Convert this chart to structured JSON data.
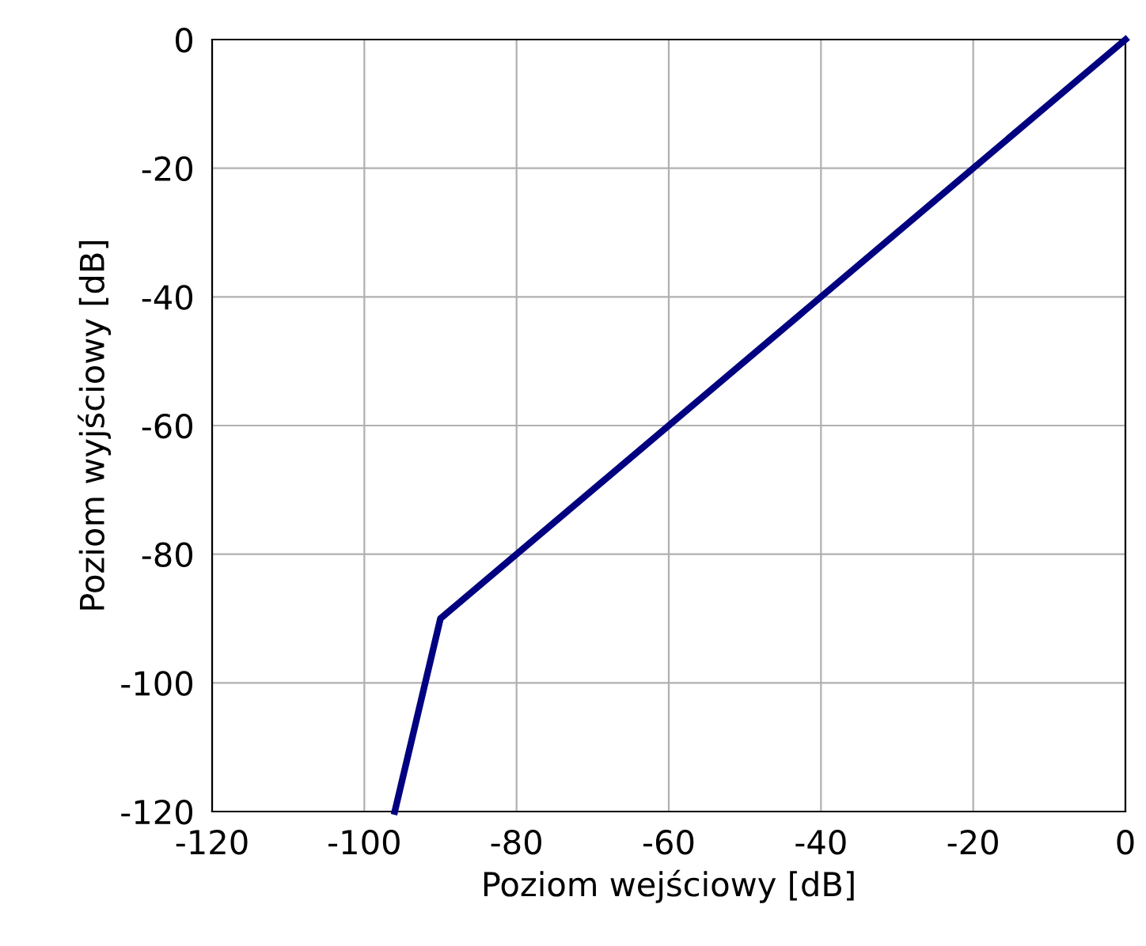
{
  "chart_data": {
    "type": "line",
    "xlabel": "Poziom wejściowy [dB]",
    "ylabel": "Poziom wyjściowy [dB]",
    "x": [
      -96,
      -90,
      0
    ],
    "series": [
      {
        "color": "#000080",
        "values": [
          -120,
          -90,
          0
        ]
      }
    ],
    "xlim": [
      -120,
      0
    ],
    "ylim": [
      -120,
      0
    ],
    "xticks": [
      -120,
      -100,
      -80,
      -60,
      -40,
      -20,
      0
    ],
    "yticks": [
      -120,
      -100,
      -80,
      -60,
      -40,
      -20,
      0
    ],
    "grid": true,
    "legend": false,
    "marker": "none",
    "line_style": "solid"
  }
}
